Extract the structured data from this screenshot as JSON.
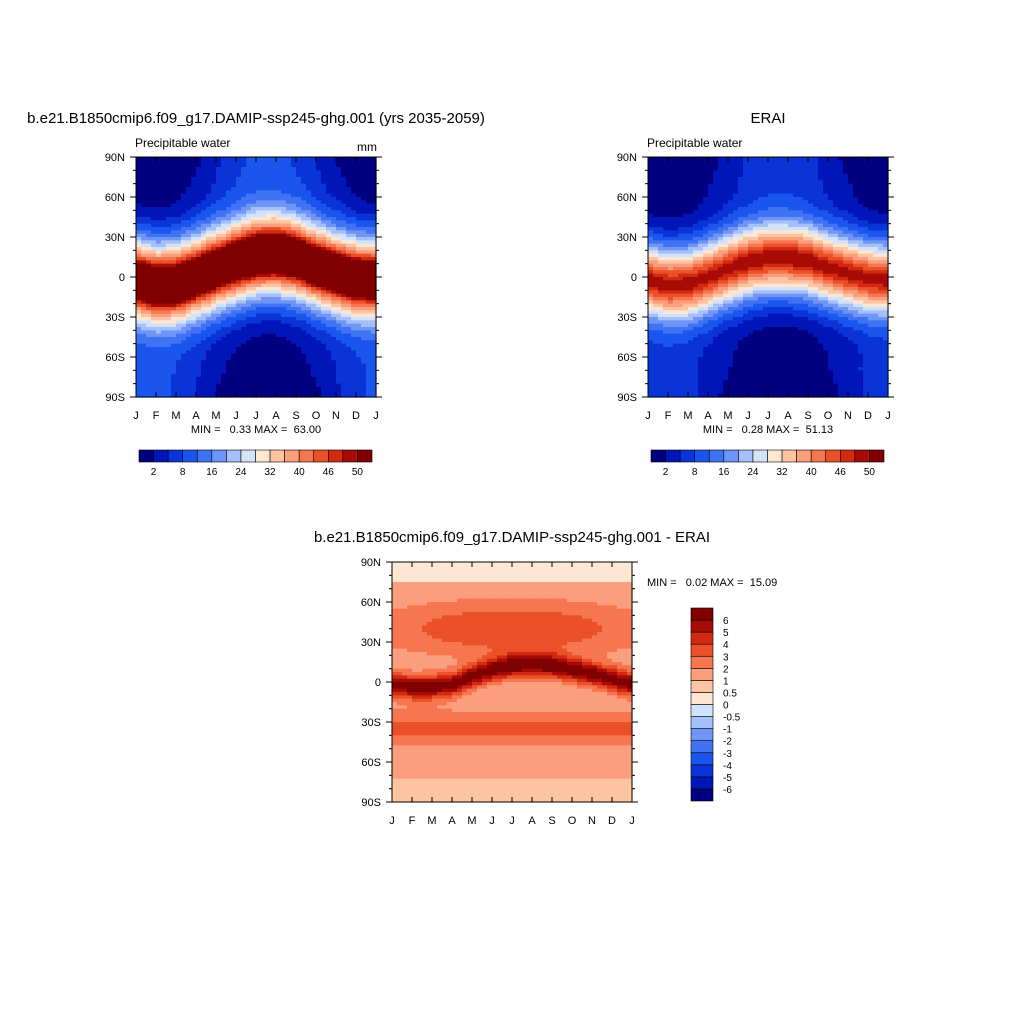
{
  "chart_data": [
    {
      "type": "heatmap",
      "title": "b.e21.B1850cmip6.f09_g17.DAMIP-ssp245-ghg.001 (yrs 2035-2059)",
      "left_label": "Precipitable water",
      "right_label": "mm",
      "x_tick_labels": [
        "J",
        "F",
        "M",
        "A",
        "M",
        "J",
        "J",
        "A",
        "S",
        "O",
        "N",
        "D",
        "J"
      ],
      "y_tick_labels": [
        "90N",
        "60N",
        "30N",
        "0",
        "30S",
        "60S",
        "90S"
      ],
      "ylim": [
        -90,
        90
      ],
      "stats": "MIN =   0.33 MAX =  63.00",
      "min": 0.33,
      "max": 63.0,
      "colorbar": {
        "orientation": "horizontal",
        "levels": [
          2,
          5,
          8,
          12,
          16,
          20,
          24,
          28,
          32,
          36,
          40,
          43,
          46,
          48,
          50
        ],
        "tick_labels": [
          "2",
          "8",
          "16",
          "24",
          "32",
          "40",
          "46",
          "50"
        ],
        "colors": [
          "#000080",
          "#0016b8",
          "#0a34d8",
          "#1a55ee",
          "#3f73f4",
          "#6f95f6",
          "#a5bff8",
          "#d2e2fb",
          "#fde7d2",
          "#fdc4a4",
          "#fb9e7e",
          "#f6764f",
          "#ea5129",
          "#d22a12",
          "#a80a05",
          "#800000"
        ]
      },
      "field": {
        "kind": "model",
        "band_center_lat_by_month": [
          -2,
          -6,
          -5,
          0,
          6,
          11,
          16,
          17,
          14,
          8,
          3,
          -1,
          -2
        ],
        "band_half_width": 7,
        "peak_value": 63.0
      }
    },
    {
      "type": "heatmap",
      "title": "ERAI",
      "left_label": "Precipitable water",
      "right_label": "",
      "x_tick_labels": [
        "J",
        "F",
        "M",
        "A",
        "M",
        "J",
        "J",
        "A",
        "S",
        "O",
        "N",
        "D",
        "J"
      ],
      "y_tick_labels": [
        "90N",
        "60N",
        "30N",
        "0",
        "30S",
        "60S",
        "90S"
      ],
      "ylim": [
        -90,
        90
      ],
      "stats": "MIN =   0.28 MAX =  51.13",
      "min": 0.28,
      "max": 51.13,
      "colorbar": {
        "orientation": "horizontal",
        "levels": [
          2,
          5,
          8,
          12,
          16,
          20,
          24,
          28,
          32,
          36,
          40,
          43,
          46,
          48,
          50
        ],
        "tick_labels": [
          "2",
          "8",
          "16",
          "24",
          "32",
          "40",
          "46",
          "50"
        ],
        "colors": [
          "#000080",
          "#0016b8",
          "#0a34d8",
          "#1a55ee",
          "#3f73f4",
          "#6f95f6",
          "#a5bff8",
          "#d2e2fb",
          "#fde7d2",
          "#fdc4a4",
          "#fb9e7e",
          "#f6764f",
          "#ea5129",
          "#d22a12",
          "#a80a05",
          "#800000"
        ]
      },
      "field": {
        "kind": "obs",
        "band_center_lat_by_month": [
          -2,
          -6,
          -5,
          0,
          6,
          11,
          14,
          14,
          12,
          7,
          3,
          -1,
          -2
        ],
        "band_half_width": 6,
        "peak_value": 51.13
      }
    },
    {
      "type": "heatmap",
      "title": "b.e21.B1850cmip6.f09_g17.DAMIP-ssp245-ghg.001 - ERAI",
      "x_tick_labels": [
        "J",
        "F",
        "M",
        "A",
        "M",
        "J",
        "J",
        "A",
        "S",
        "O",
        "N",
        "D",
        "J"
      ],
      "y_tick_labels": [
        "90N",
        "60N",
        "30N",
        "0",
        "30S",
        "60S",
        "90S"
      ],
      "ylim": [
        -90,
        90
      ],
      "stats": "MIN =   0.02 MAX =  15.09",
      "min": 0.02,
      "max": 15.09,
      "colorbar": {
        "orientation": "vertical",
        "levels": [
          -6,
          -5,
          -4,
          -3,
          -2,
          -1,
          -0.5,
          0,
          0.5,
          1,
          2,
          3,
          4,
          5,
          6
        ],
        "tick_labels": [
          "-6",
          "-5",
          "-4",
          "-3",
          "-2",
          "-1",
          "-0.5",
          "0",
          "0.5",
          "1",
          "2",
          "3",
          "4",
          "5",
          "6"
        ],
        "colors": [
          "#000080",
          "#0016b8",
          "#0a34d8",
          "#1a55ee",
          "#3f73f4",
          "#6f95f6",
          "#a5bff8",
          "#d2e2fb",
          "#fde7d2",
          "#fdc4a4",
          "#fb9e7e",
          "#f6764f",
          "#ea5129",
          "#d22a12",
          "#a80a05",
          "#800000"
        ]
      },
      "field": {
        "kind": "diff",
        "band_center_lat_by_month": [
          -2,
          -4,
          -4,
          -2,
          4,
          9,
          12,
          13,
          12,
          9,
          6,
          2,
          -2
        ],
        "band_half_width": 9,
        "peak_value": 15.09
      }
    }
  ]
}
